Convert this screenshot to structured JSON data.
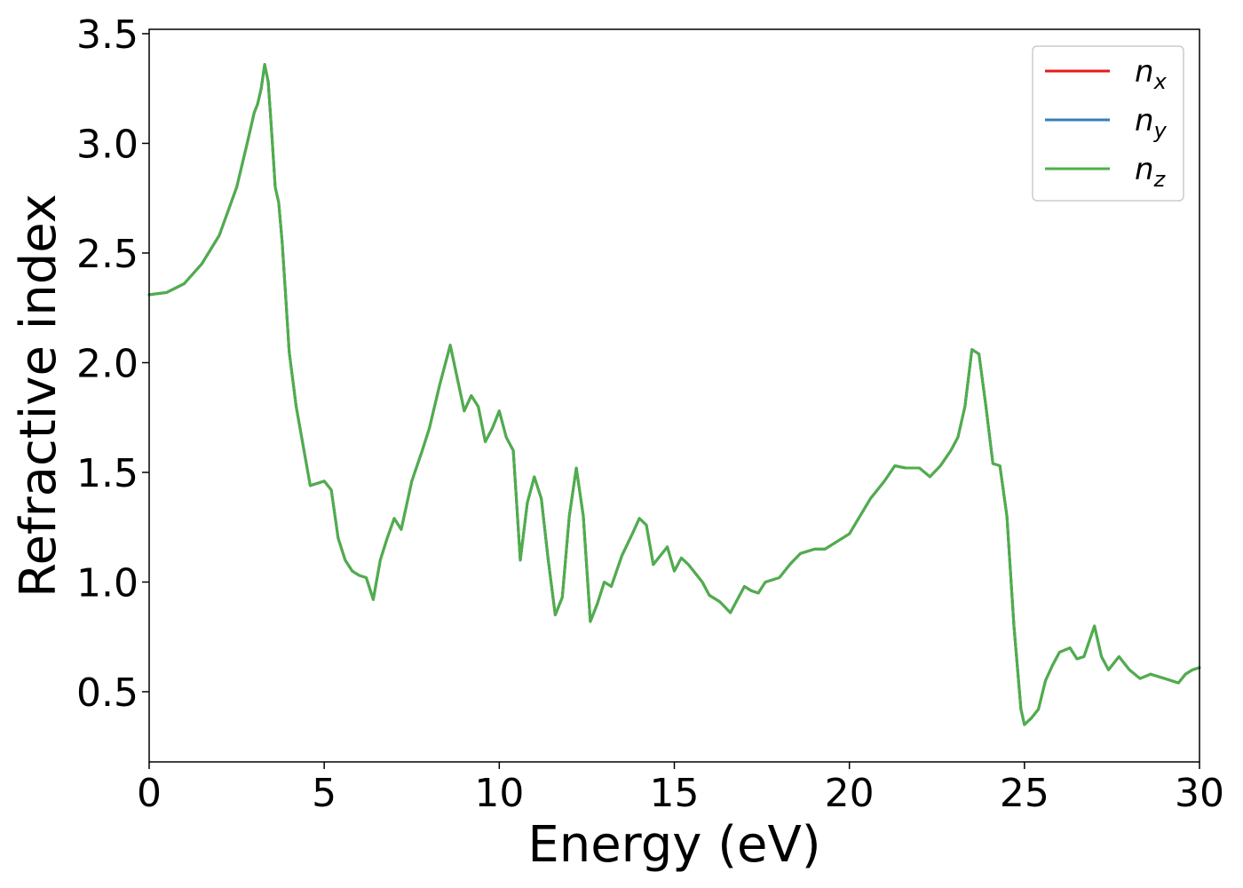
{
  "chart_data": {
    "type": "line",
    "title": "",
    "xlabel": "Energy (eV)",
    "ylabel": "Refractive index",
    "xlim": [
      0,
      30
    ],
    "ylim": [
      0.18,
      3.52
    ],
    "xticks": [
      0,
      5,
      10,
      15,
      20,
      25,
      30
    ],
    "xtick_labels": [
      "0",
      "5",
      "10",
      "15",
      "20",
      "25",
      "30"
    ],
    "yticks": [
      0.5,
      1.0,
      1.5,
      2.0,
      2.5,
      3.0,
      3.5
    ],
    "ytick_labels": [
      "0.5",
      "1.0",
      "1.5",
      "2.0",
      "2.5",
      "3.0",
      "3.5"
    ],
    "grid": false,
    "legend_position": "top-right",
    "series": [
      {
        "name": "n",
        "subscript": "x",
        "color": "#e41a1c"
      },
      {
        "name": "n",
        "subscript": "y",
        "color": "#377eb8"
      },
      {
        "name": "n",
        "subscript": "z",
        "color": "#4daf4a"
      }
    ],
    "x": [
      0,
      0.5,
      1.0,
      1.5,
      2.0,
      2.5,
      2.8,
      3.0,
      3.1,
      3.2,
      3.3,
      3.4,
      3.5,
      3.6,
      3.7,
      3.8,
      3.9,
      4.0,
      4.2,
      4.4,
      4.6,
      4.8,
      5.0,
      5.2,
      5.4,
      5.6,
      5.8,
      6.0,
      6.2,
      6.4,
      6.6,
      6.8,
      7.0,
      7.2,
      7.5,
      7.8,
      8.0,
      8.3,
      8.6,
      8.8,
      9.0,
      9.2,
      9.4,
      9.6,
      9.8,
      10.0,
      10.2,
      10.4,
      10.6,
      10.8,
      11.0,
      11.2,
      11.4,
      11.6,
      11.8,
      12.0,
      12.2,
      12.4,
      12.6,
      12.8,
      13.0,
      13.2,
      13.5,
      13.8,
      14.0,
      14.2,
      14.4,
      14.6,
      14.8,
      15.0,
      15.2,
      15.4,
      15.6,
      15.8,
      16.0,
      16.3,
      16.6,
      16.8,
      17.0,
      17.2,
      17.4,
      17.6,
      17.8,
      18.0,
      18.3,
      18.6,
      19.0,
      19.3,
      19.6,
      20.0,
      20.3,
      20.6,
      21.0,
      21.3,
      21.6,
      22.0,
      22.3,
      22.6,
      22.9,
      23.1,
      23.3,
      23.5,
      23.7,
      23.9,
      24.1,
      24.3,
      24.5,
      24.7,
      24.9,
      25.0,
      25.2,
      25.4,
      25.6,
      25.8,
      26.0,
      26.3,
      26.5,
      26.7,
      27.0,
      27.2,
      27.4,
      27.7,
      28.0,
      28.3,
      28.6,
      29.0,
      29.2,
      29.4,
      29.6,
      29.8,
      30.0
    ],
    "values": [
      2.31,
      2.32,
      2.36,
      2.45,
      2.58,
      2.8,
      3.0,
      3.14,
      3.18,
      3.25,
      3.36,
      3.28,
      3.05,
      2.8,
      2.73,
      2.55,
      2.3,
      2.05,
      1.8,
      1.62,
      1.44,
      1.45,
      1.46,
      1.42,
      1.2,
      1.1,
      1.05,
      1.03,
      1.02,
      0.92,
      1.1,
      1.2,
      1.29,
      1.24,
      1.46,
      1.6,
      1.7,
      1.9,
      2.08,
      1.93,
      1.78,
      1.85,
      1.8,
      1.64,
      1.7,
      1.78,
      1.66,
      1.6,
      1.1,
      1.36,
      1.48,
      1.38,
      1.1,
      0.85,
      0.93,
      1.3,
      1.52,
      1.3,
      0.82,
      0.9,
      1.0,
      0.98,
      1.12,
      1.22,
      1.29,
      1.26,
      1.08,
      1.12,
      1.16,
      1.05,
      1.11,
      1.08,
      1.04,
      1.0,
      0.94,
      0.91,
      0.86,
      0.92,
      0.98,
      0.96,
      0.95,
      1.0,
      1.01,
      1.02,
      1.08,
      1.13,
      1.15,
      1.15,
      1.18,
      1.22,
      1.3,
      1.38,
      1.46,
      1.53,
      1.52,
      1.52,
      1.48,
      1.53,
      1.6,
      1.66,
      1.8,
      2.06,
      2.04,
      1.8,
      1.54,
      1.53,
      1.3,
      0.8,
      0.42,
      0.35,
      0.38,
      0.42,
      0.55,
      0.62,
      0.68,
      0.7,
      0.65,
      0.66,
      0.8,
      0.66,
      0.6,
      0.66,
      0.6,
      0.56,
      0.58,
      0.56,
      0.55,
      0.54,
      0.58,
      0.6,
      0.61
    ]
  }
}
